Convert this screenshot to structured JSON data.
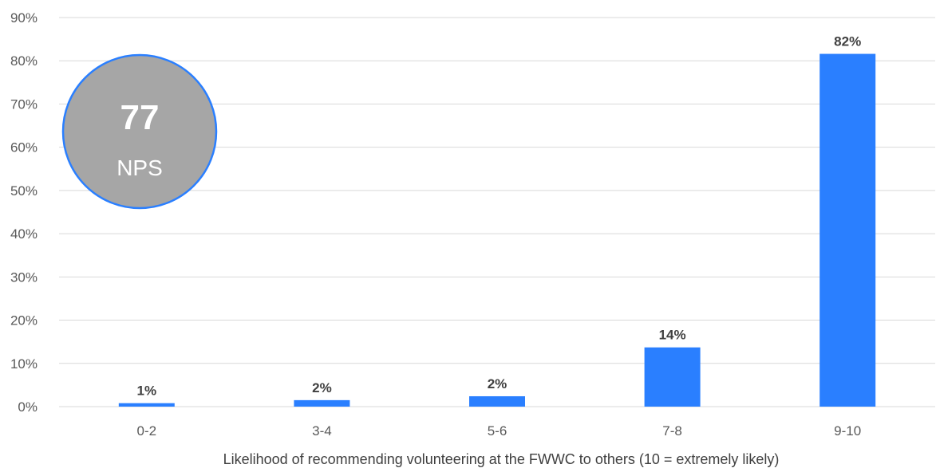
{
  "chart_data": {
    "type": "bar",
    "categories": [
      "0-2",
      "3-4",
      "5-6",
      "7-8",
      "9-10"
    ],
    "values": [
      0.8,
      1.5,
      2.4,
      13.7,
      81.6
    ],
    "data_labels": [
      "1%",
      "2%",
      "2%",
      "14%",
      "82%"
    ],
    "xlabel": "Likelihood of recommending volunteering at the FWWC to others (10 = extremely likely)",
    "ylabel": "",
    "ylim": [
      0,
      90
    ],
    "yticks": [
      0,
      10,
      20,
      30,
      40,
      50,
      60,
      70,
      80,
      90
    ],
    "ytick_labels": [
      "0%",
      "10%",
      "20%",
      "30%",
      "40%",
      "50%",
      "60%",
      "70%",
      "80%",
      "90%"
    ],
    "grid": true,
    "bar_color": "#2A7FFF",
    "grid_color": "#D9D9D9"
  },
  "badge": {
    "value": "77",
    "label": "NPS",
    "fill_color": "#A6A6A6",
    "border_color": "#2A7FFF"
  }
}
